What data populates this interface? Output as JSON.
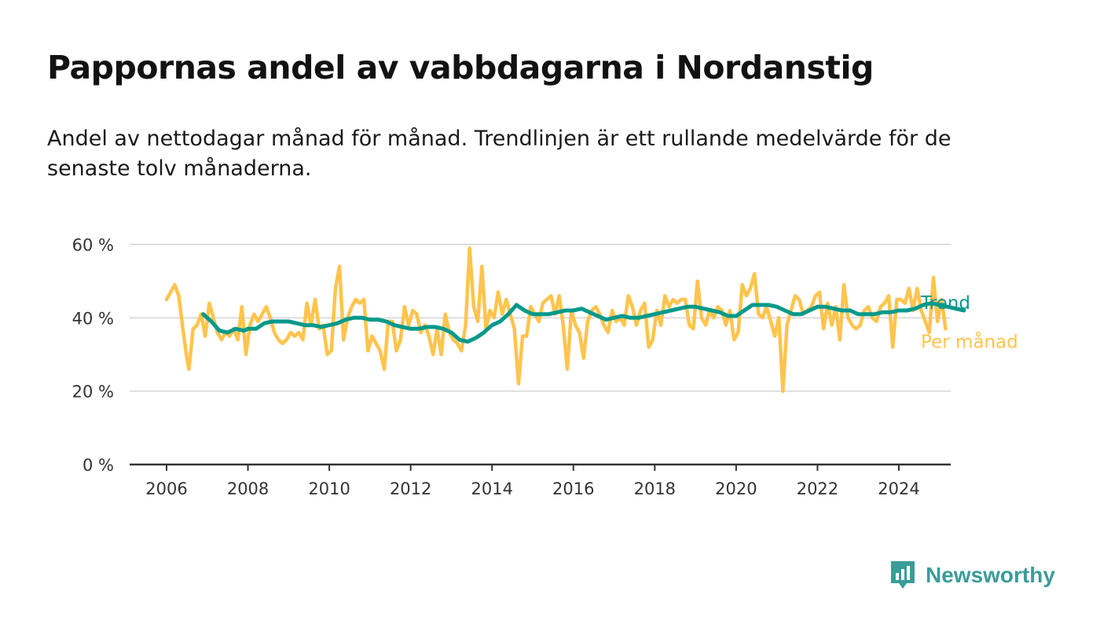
{
  "title": "Pappornas andel av vabbdagarna i Nordanstig",
  "subtitle": "Andel av nettodagar månad för månad. Trendlinjen är ett rullande medelvärde för de senaste tolv månaderna.",
  "brand": {
    "name": "Newsworthy"
  },
  "colors": {
    "per_month": "#FFC44D",
    "trend": "#06998A",
    "grid": "#dddddd",
    "axis": "#333333",
    "brand": "#3a9c98"
  },
  "chart_data": {
    "type": "line",
    "x_unit": "year",
    "ylim": [
      0,
      60
    ],
    "xlim": [
      2005.5,
      2025.3
    ],
    "y_ticks": [
      0,
      20,
      40,
      60
    ],
    "y_tick_labels": [
      "0 %",
      "20 %",
      "40 %",
      "60 %"
    ],
    "x_ticks": [
      2006,
      2008,
      2010,
      2012,
      2014,
      2016,
      2018,
      2020,
      2022,
      2024
    ],
    "x_tick_labels": [
      "2006",
      "2008",
      "2010",
      "2012",
      "2014",
      "2016",
      "2018",
      "2020",
      "2022",
      "2024"
    ],
    "grid": "horizontal",
    "legend": "inline labels at line ends (right)",
    "series": [
      {
        "name": "Per månad",
        "color": "#FFC44D",
        "points": [
          [
            2006.0,
            45
          ],
          [
            2006.1,
            47
          ],
          [
            2006.2,
            49
          ],
          [
            2006.3,
            46
          ],
          [
            2006.4,
            37
          ],
          [
            2006.5,
            29
          ],
          [
            2006.55,
            26
          ],
          [
            2006.65,
            37
          ],
          [
            2006.75,
            38
          ],
          [
            2006.85,
            41
          ],
          [
            2006.95,
            35
          ],
          [
            2007.05,
            44
          ],
          [
            2007.15,
            40
          ],
          [
            2007.25,
            36
          ],
          [
            2007.35,
            34
          ],
          [
            2007.45,
            36
          ],
          [
            2007.55,
            35
          ],
          [
            2007.65,
            37
          ],
          [
            2007.75,
            34
          ],
          [
            2007.85,
            43
          ],
          [
            2007.95,
            30
          ],
          [
            2008.05,
            38
          ],
          [
            2008.15,
            41
          ],
          [
            2008.25,
            39
          ],
          [
            2008.35,
            41
          ],
          [
            2008.45,
            43
          ],
          [
            2008.55,
            40
          ],
          [
            2008.65,
            36
          ],
          [
            2008.75,
            34
          ],
          [
            2008.85,
            33
          ],
          [
            2008.95,
            34
          ],
          [
            2009.05,
            36
          ],
          [
            2009.15,
            35
          ],
          [
            2009.25,
            36
          ],
          [
            2009.35,
            34
          ],
          [
            2009.45,
            44
          ],
          [
            2009.55,
            38
          ],
          [
            2009.65,
            45
          ],
          [
            2009.75,
            37
          ],
          [
            2009.85,
            38
          ],
          [
            2009.95,
            30
          ],
          [
            2010.05,
            31
          ],
          [
            2010.15,
            48
          ],
          [
            2010.25,
            54
          ],
          [
            2010.35,
            34
          ],
          [
            2010.45,
            40
          ],
          [
            2010.55,
            43
          ],
          [
            2010.65,
            45
          ],
          [
            2010.75,
            44
          ],
          [
            2010.85,
            45
          ],
          [
            2010.95,
            31
          ],
          [
            2011.05,
            35
          ],
          [
            2011.15,
            33
          ],
          [
            2011.25,
            31
          ],
          [
            2011.35,
            26
          ],
          [
            2011.45,
            39
          ],
          [
            2011.55,
            39
          ],
          [
            2011.65,
            31
          ],
          [
            2011.75,
            34
          ],
          [
            2011.85,
            43
          ],
          [
            2011.95,
            38
          ],
          [
            2012.05,
            42
          ],
          [
            2012.15,
            41
          ],
          [
            2012.25,
            36
          ],
          [
            2012.35,
            38
          ],
          [
            2012.45,
            35
          ],
          [
            2012.55,
            30
          ],
          [
            2012.65,
            37
          ],
          [
            2012.75,
            30
          ],
          [
            2012.85,
            41
          ],
          [
            2012.95,
            36
          ],
          [
            2013.05,
            34
          ],
          [
            2013.15,
            33
          ],
          [
            2013.25,
            31
          ],
          [
            2013.35,
            38
          ],
          [
            2013.45,
            59
          ],
          [
            2013.55,
            43
          ],
          [
            2013.65,
            39
          ],
          [
            2013.75,
            54
          ],
          [
            2013.85,
            37
          ],
          [
            2013.95,
            42
          ],
          [
            2014.05,
            40
          ],
          [
            2014.15,
            47
          ],
          [
            2014.25,
            41
          ],
          [
            2014.35,
            45
          ],
          [
            2014.45,
            41
          ],
          [
            2014.55,
            37
          ],
          [
            2014.65,
            22
          ],
          [
            2014.75,
            35
          ],
          [
            2014.85,
            35
          ],
          [
            2014.95,
            43
          ],
          [
            2015.05,
            41
          ],
          [
            2015.15,
            39
          ],
          [
            2015.25,
            44
          ],
          [
            2015.35,
            45
          ],
          [
            2015.45,
            46
          ],
          [
            2015.55,
            41
          ],
          [
            2015.65,
            46
          ],
          [
            2015.75,
            38
          ],
          [
            2015.85,
            26
          ],
          [
            2015.95,
            42
          ],
          [
            2016.05,
            38
          ],
          [
            2016.15,
            36
          ],
          [
            2016.25,
            29
          ],
          [
            2016.35,
            39
          ],
          [
            2016.45,
            42
          ],
          [
            2016.55,
            43
          ],
          [
            2016.65,
            41
          ],
          [
            2016.75,
            38
          ],
          [
            2016.85,
            36
          ],
          [
            2016.95,
            42
          ],
          [
            2017.05,
            39
          ],
          [
            2017.15,
            40
          ],
          [
            2017.25,
            38
          ],
          [
            2017.35,
            46
          ],
          [
            2017.45,
            43
          ],
          [
            2017.55,
            38
          ],
          [
            2017.65,
            42
          ],
          [
            2017.75,
            44
          ],
          [
            2017.85,
            32
          ],
          [
            2017.95,
            34
          ],
          [
            2018.05,
            42
          ],
          [
            2018.15,
            38
          ],
          [
            2018.25,
            46
          ],
          [
            2018.35,
            43
          ],
          [
            2018.45,
            45
          ],
          [
            2018.55,
            44
          ],
          [
            2018.65,
            45
          ],
          [
            2018.75,
            45
          ],
          [
            2018.85,
            38
          ],
          [
            2018.95,
            37
          ],
          [
            2019.05,
            50
          ],
          [
            2019.15,
            40
          ],
          [
            2019.25,
            38
          ],
          [
            2019.35,
            42
          ],
          [
            2019.45,
            40
          ],
          [
            2019.55,
            43
          ],
          [
            2019.65,
            42
          ],
          [
            2019.75,
            38
          ],
          [
            2019.85,
            42
          ],
          [
            2019.95,
            34
          ],
          [
            2020.05,
            36
          ],
          [
            2020.15,
            49
          ],
          [
            2020.25,
            46
          ],
          [
            2020.35,
            48
          ],
          [
            2020.45,
            52
          ],
          [
            2020.55,
            41
          ],
          [
            2020.65,
            40
          ],
          [
            2020.75,
            43
          ],
          [
            2020.85,
            39
          ],
          [
            2020.95,
            35
          ],
          [
            2021.05,
            40
          ],
          [
            2021.15,
            20
          ],
          [
            2021.25,
            38
          ],
          [
            2021.35,
            42
          ],
          [
            2021.45,
            46
          ],
          [
            2021.55,
            45
          ],
          [
            2021.65,
            41
          ],
          [
            2021.75,
            42
          ],
          [
            2021.85,
            43
          ],
          [
            2021.95,
            46
          ],
          [
            2022.05,
            47
          ],
          [
            2022.15,
            37
          ],
          [
            2022.25,
            44
          ],
          [
            2022.35,
            38
          ],
          [
            2022.45,
            43
          ],
          [
            2022.55,
            34
          ],
          [
            2022.65,
            49
          ],
          [
            2022.75,
            40
          ],
          [
            2022.85,
            38
          ],
          [
            2022.95,
            37
          ],
          [
            2023.05,
            38
          ],
          [
            2023.15,
            42
          ],
          [
            2023.25,
            43
          ],
          [
            2023.35,
            40
          ],
          [
            2023.45,
            39
          ],
          [
            2023.55,
            43
          ],
          [
            2023.65,
            44
          ],
          [
            2023.75,
            46
          ],
          [
            2023.85,
            32
          ],
          [
            2023.95,
            45
          ],
          [
            2024.05,
            45
          ],
          [
            2024.15,
            44
          ],
          [
            2024.25,
            48
          ],
          [
            2024.35,
            42
          ],
          [
            2024.45,
            48
          ],
          [
            2024.55,
            42
          ],
          [
            2024.65,
            39
          ],
          [
            2024.75,
            36
          ],
          [
            2024.85,
            51
          ],
          [
            2024.95,
            39
          ],
          [
            2025.05,
            45
          ],
          [
            2025.15,
            37
          ]
        ]
      },
      {
        "name": "Trend",
        "color": "#06998A",
        "points": [
          [
            2006.9,
            41
          ],
          [
            2007.1,
            39
          ],
          [
            2007.3,
            36.5
          ],
          [
            2007.5,
            36
          ],
          [
            2007.7,
            37
          ],
          [
            2007.9,
            36.5
          ],
          [
            2008.0,
            37
          ],
          [
            2008.2,
            37
          ],
          [
            2008.4,
            38.5
          ],
          [
            2008.6,
            39
          ],
          [
            2008.8,
            39
          ],
          [
            2009.0,
            39
          ],
          [
            2009.2,
            38.5
          ],
          [
            2009.4,
            38
          ],
          [
            2009.6,
            38
          ],
          [
            2009.8,
            37.5
          ],
          [
            2010.0,
            38
          ],
          [
            2010.2,
            38.5
          ],
          [
            2010.4,
            39.5
          ],
          [
            2010.6,
            40
          ],
          [
            2010.8,
            40
          ],
          [
            2011.0,
            39.5
          ],
          [
            2011.2,
            39.5
          ],
          [
            2011.4,
            39
          ],
          [
            2011.6,
            38
          ],
          [
            2011.8,
            37.5
          ],
          [
            2012.0,
            37
          ],
          [
            2012.2,
            37
          ],
          [
            2012.4,
            37.5
          ],
          [
            2012.6,
            37.5
          ],
          [
            2012.8,
            37
          ],
          [
            2013.0,
            36
          ],
          [
            2013.2,
            34
          ],
          [
            2013.4,
            33.5
          ],
          [
            2013.6,
            34.5
          ],
          [
            2013.8,
            36
          ],
          [
            2014.0,
            38
          ],
          [
            2014.2,
            39
          ],
          [
            2014.4,
            41
          ],
          [
            2014.6,
            43.5
          ],
          [
            2014.8,
            42
          ],
          [
            2015.0,
            41
          ],
          [
            2015.2,
            41
          ],
          [
            2015.4,
            41
          ],
          [
            2015.6,
            41.5
          ],
          [
            2015.8,
            42
          ],
          [
            2016.0,
            42
          ],
          [
            2016.2,
            42.5
          ],
          [
            2016.4,
            41.5
          ],
          [
            2016.6,
            40.5
          ],
          [
            2016.8,
            39.5
          ],
          [
            2017.0,
            40
          ],
          [
            2017.2,
            40.5
          ],
          [
            2017.4,
            40
          ],
          [
            2017.6,
            40
          ],
          [
            2017.8,
            40.5
          ],
          [
            2018.0,
            41
          ],
          [
            2018.2,
            41.5
          ],
          [
            2018.4,
            42
          ],
          [
            2018.6,
            42.5
          ],
          [
            2018.8,
            43
          ],
          [
            2019.0,
            43
          ],
          [
            2019.2,
            42.5
          ],
          [
            2019.4,
            42
          ],
          [
            2019.6,
            41.5
          ],
          [
            2019.8,
            40.5
          ],
          [
            2020.0,
            40.5
          ],
          [
            2020.2,
            42
          ],
          [
            2020.4,
            43.5
          ],
          [
            2020.6,
            43.5
          ],
          [
            2020.8,
            43.5
          ],
          [
            2021.0,
            43
          ],
          [
            2021.2,
            42
          ],
          [
            2021.4,
            41
          ],
          [
            2021.6,
            41
          ],
          [
            2021.8,
            42
          ],
          [
            2022.0,
            43
          ],
          [
            2022.2,
            43
          ],
          [
            2022.4,
            42.5
          ],
          [
            2022.6,
            42
          ],
          [
            2022.8,
            42
          ],
          [
            2023.0,
            41
          ],
          [
            2023.2,
            41
          ],
          [
            2023.4,
            41
          ],
          [
            2023.6,
            41.5
          ],
          [
            2023.8,
            41.5
          ],
          [
            2024.0,
            42
          ],
          [
            2024.2,
            42
          ],
          [
            2024.4,
            42.5
          ],
          [
            2024.6,
            43.5
          ],
          [
            2024.8,
            44
          ],
          [
            2025.0,
            43.5
          ],
          [
            2025.2,
            43
          ],
          [
            2025.4,
            42.5
          ],
          [
            2025.6,
            42
          ]
        ]
      }
    ]
  }
}
